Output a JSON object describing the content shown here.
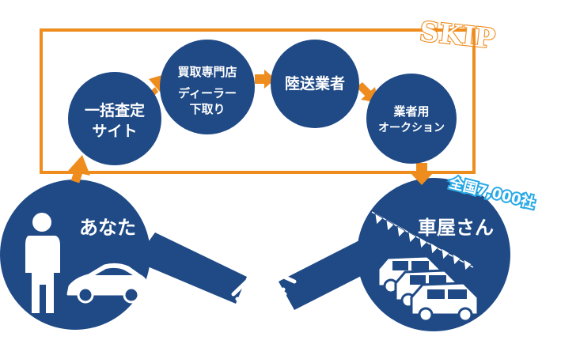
{
  "skip_label": "SKIP",
  "you": {
    "label": "あなた"
  },
  "dealer": {
    "label": "車屋さん",
    "badge": "全国7,000社"
  },
  "steps": [
    {
      "lines": [
        "一括査定",
        "サイト"
      ]
    },
    {
      "lines": [
        "買取専門店",
        "ディーラー",
        "下取り"
      ]
    },
    {
      "lines": [
        "陸送業者"
      ]
    },
    {
      "lines": [
        "業者用",
        "オークション"
      ]
    }
  ],
  "colors": {
    "navy": "#1f4a86",
    "orange": "#ef8c1e",
    "badge_blue": "#29a9e6",
    "white": "#ffffff"
  }
}
